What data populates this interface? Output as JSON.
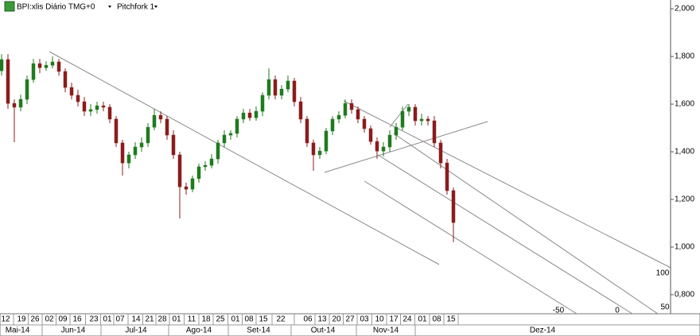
{
  "chart_data": {
    "type": "candlestick",
    "title": "BPI:xlis Diário TMG+0",
    "annotation": "Pitchfork 1",
    "open": [
      1.74,
      1.787,
      1.603,
      1.587,
      1.62,
      1.703,
      1.77,
      1.753,
      1.763,
      1.777,
      1.737,
      1.67,
      1.637,
      1.61,
      1.57,
      1.577,
      1.593,
      1.587,
      1.537,
      1.437,
      1.353,
      1.387,
      1.42,
      1.437,
      1.503,
      1.553,
      1.537,
      1.47,
      1.387,
      1.253,
      1.243,
      1.287,
      1.337,
      1.343,
      1.37,
      1.437,
      1.47,
      1.477,
      1.537,
      1.563,
      1.543,
      1.57,
      1.637,
      1.703,
      1.637,
      1.663,
      1.697,
      1.61,
      1.537,
      1.437,
      1.387,
      1.403,
      1.487,
      1.537,
      1.553,
      1.603,
      1.577,
      1.537,
      1.497,
      1.443,
      1.403,
      1.42,
      1.47,
      1.503,
      1.57,
      1.587,
      1.53,
      1.537,
      1.53,
      1.437,
      1.353,
      1.237
    ],
    "high": [
      1.81,
      1.81,
      1.62,
      1.64,
      1.72,
      1.79,
      1.79,
      1.78,
      1.8,
      1.79,
      1.75,
      1.69,
      1.66,
      1.63,
      1.6,
      1.61,
      1.61,
      1.6,
      1.55,
      1.45,
      1.4,
      1.44,
      1.46,
      1.52,
      1.58,
      1.57,
      1.55,
      1.49,
      1.4,
      1.27,
      1.3,
      1.35,
      1.36,
      1.39,
      1.45,
      1.49,
      1.49,
      1.55,
      1.58,
      1.58,
      1.59,
      1.65,
      1.75,
      1.72,
      1.68,
      1.72,
      1.71,
      1.63,
      1.55,
      1.45,
      1.42,
      1.5,
      1.55,
      1.57,
      1.62,
      1.62,
      1.59,
      1.55,
      1.51,
      1.46,
      1.44,
      1.49,
      1.52,
      1.59,
      1.6,
      1.6,
      1.56,
      1.55,
      1.55,
      1.45,
      1.37,
      1.25
    ],
    "low": [
      1.72,
      1.58,
      1.44,
      1.57,
      1.6,
      1.69,
      1.73,
      1.74,
      1.75,
      1.72,
      1.65,
      1.62,
      1.59,
      1.55,
      1.55,
      1.56,
      1.57,
      1.52,
      1.42,
      1.3,
      1.33,
      1.37,
      1.4,
      1.42,
      1.49,
      1.52,
      1.45,
      1.37,
      1.12,
      1.22,
      1.23,
      1.27,
      1.32,
      1.33,
      1.35,
      1.42,
      1.45,
      1.46,
      1.52,
      1.53,
      1.53,
      1.55,
      1.62,
      1.62,
      1.62,
      1.65,
      1.59,
      1.52,
      1.42,
      1.32,
      1.37,
      1.39,
      1.47,
      1.52,
      1.54,
      1.56,
      1.52,
      1.48,
      1.43,
      1.37,
      1.38,
      1.4,
      1.45,
      1.49,
      1.55,
      1.51,
      1.51,
      1.51,
      1.42,
      1.33,
      1.22,
      1.02
    ],
    "close": [
      1.787,
      1.603,
      1.587,
      1.62,
      1.703,
      1.77,
      1.753,
      1.763,
      1.777,
      1.737,
      1.67,
      1.637,
      1.61,
      1.57,
      1.577,
      1.593,
      1.587,
      1.537,
      1.437,
      1.353,
      1.387,
      1.42,
      1.437,
      1.503,
      1.553,
      1.537,
      1.47,
      1.387,
      1.253,
      1.243,
      1.287,
      1.337,
      1.343,
      1.37,
      1.437,
      1.47,
      1.477,
      1.537,
      1.563,
      1.543,
      1.57,
      1.637,
      1.703,
      1.637,
      1.663,
      1.697,
      1.61,
      1.537,
      1.437,
      1.387,
      1.403,
      1.487,
      1.537,
      1.553,
      1.603,
      1.577,
      1.537,
      1.497,
      1.443,
      1.403,
      1.42,
      1.47,
      1.503,
      1.57,
      1.587,
      1.53,
      1.537,
      1.53,
      1.437,
      1.353,
      1.237,
      1.103
    ],
    "up_color": "#1f7a1f",
    "down_color": "#8b1c1c",
    "ylim": [
      0.72,
      2.037
    ],
    "yticks": [
      {
        "value": 0.8,
        "label": "0,800"
      },
      {
        "value": 1.0,
        "label": "1,000"
      },
      {
        "value": 1.2,
        "label": "1,200"
      },
      {
        "value": 1.4,
        "label": "1,400"
      },
      {
        "value": 1.6,
        "label": "1,600"
      },
      {
        "value": 1.8,
        "label": "1,800"
      },
      {
        "value": 2.0,
        "label": "2,000"
      }
    ],
    "xtick_labels": [
      "12",
      "19",
      "26",
      "02",
      "09",
      "16",
      "23",
      "01",
      "07",
      "14",
      "21",
      "28",
      "01",
      "11",
      "18",
      "25",
      "01",
      "08",
      "15",
      "22",
      "06",
      "13",
      "20",
      "27",
      "03",
      "10",
      "17",
      "24",
      "01",
      "08",
      "15"
    ],
    "month_labels": [
      "Mai-14",
      "Jun-14",
      "Jul-14",
      "Ago-14",
      "Set-14",
      "Out-14",
      "Nov-14",
      "Dez-14"
    ],
    "pitchfork_levels": [
      -50,
      0,
      50,
      100
    ]
  }
}
